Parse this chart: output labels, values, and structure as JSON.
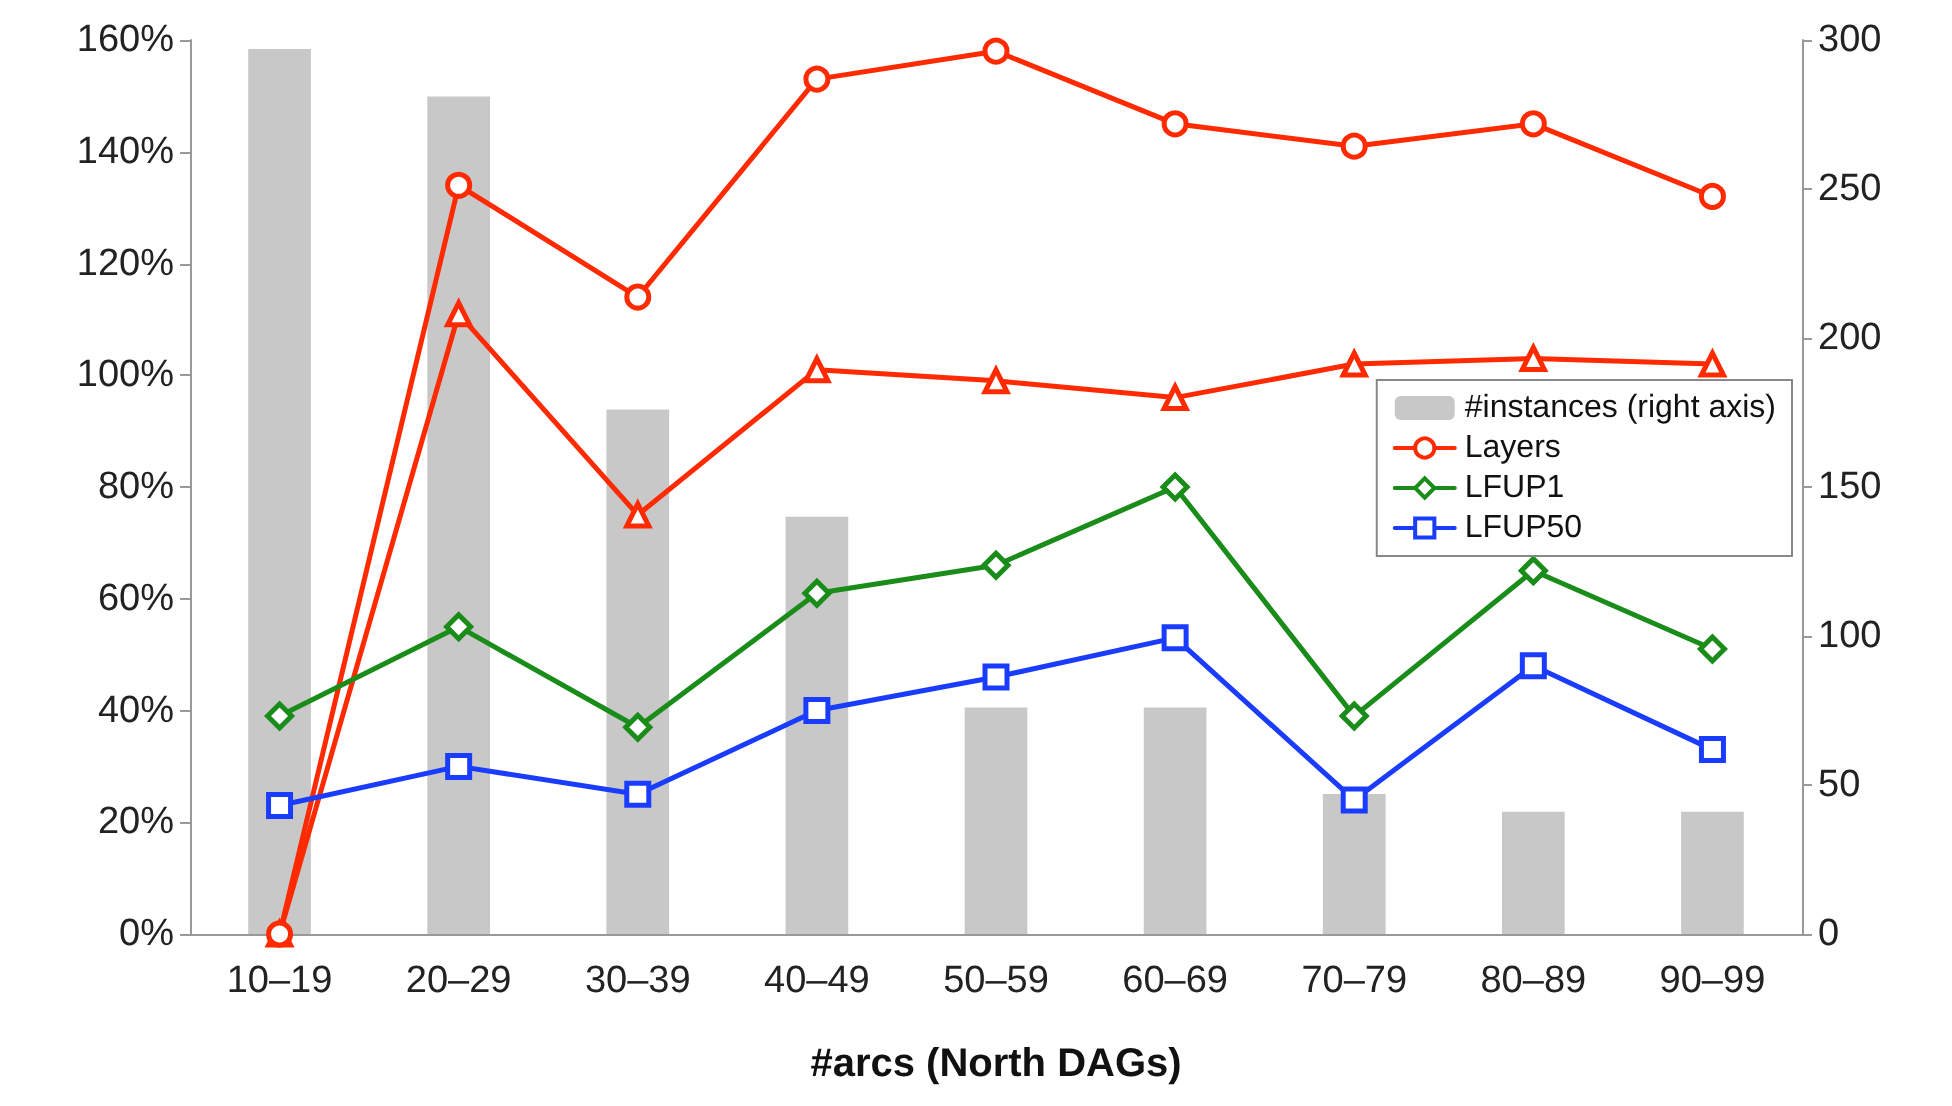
{
  "chart_data": {
    "type": "line",
    "xlabel": "#arcs (North DAGs)",
    "categories": [
      "10–19",
      "20–29",
      "30–39",
      "40–49",
      "50–59",
      "60–69",
      "70–79",
      "80–89",
      "90–99"
    ],
    "series": [
      {
        "name": "#instances (right axis)",
        "type": "bar",
        "axis": "y2",
        "color": "#c8c8c8",
        "values": [
          297,
          281,
          176,
          140,
          76,
          76,
          47,
          41,
          41
        ]
      },
      {
        "color": "#ff2a00",
        "marker": "triangle",
        "values": [
          0,
          111,
          75,
          101,
          99,
          96,
          102,
          103,
          102
        ]
      },
      {
        "name": "Layers",
        "color": "#ff2a00",
        "marker": "circle",
        "values": [
          0,
          134,
          114,
          153,
          158,
          145,
          141,
          145,
          132
        ]
      },
      {
        "name": "LFUP1",
        "color": "#1a8c1a",
        "marker": "diamond",
        "values": [
          39,
          55,
          37,
          61,
          66,
          80,
          39,
          65,
          51
        ]
      },
      {
        "name": "LFUP50",
        "color": "#1a3cff",
        "marker": "square",
        "values": [
          23,
          30,
          25,
          40,
          46,
          53,
          24,
          48,
          33
        ]
      }
    ],
    "ylim": [
      0,
      160
    ],
    "yticks": [
      {
        "value": 0,
        "label": "0%"
      },
      {
        "value": 20,
        "label": "20%"
      },
      {
        "value": 40,
        "label": "40%"
      },
      {
        "value": 60,
        "label": "60%"
      },
      {
        "value": 80,
        "label": "80%"
      },
      {
        "value": 100,
        "label": "100%"
      },
      {
        "value": 120,
        "label": "120%"
      },
      {
        "value": 140,
        "label": "140%"
      },
      {
        "value": 160,
        "label": "160%"
      }
    ],
    "y2lim": [
      0,
      300
    ],
    "y2ticks": [
      0,
      50,
      100,
      150,
      200,
      250,
      300
    ],
    "grid": false,
    "legend": "right",
    "line_style": "solid"
  }
}
